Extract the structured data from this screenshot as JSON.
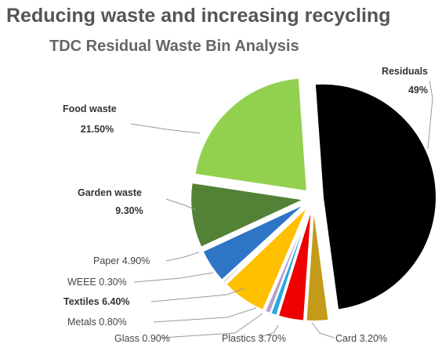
{
  "title": "Reducing waste and increasing recycling",
  "subtitle": "TDC Residual Waste Bin Analysis",
  "chart_data": {
    "type": "pie",
    "title": "Reducing waste and increasing recycling",
    "subtitle": "TDC Residual Waste Bin Analysis",
    "legend": "none",
    "slices": [
      {
        "name": "Residuals",
        "value": 49,
        "label": "Residuals",
        "value_label": "49%",
        "color": "#000000",
        "exploded": true,
        "bold": true
      },
      {
        "name": "Card",
        "value": 3.2,
        "label": "Card 3.20%",
        "color": "#c49a1a",
        "exploded": true,
        "bold": false
      },
      {
        "name": "Plastics",
        "value": 3.7,
        "label": "Plastics 3.70%",
        "color": "#ee0000",
        "exploded": true,
        "bold": false
      },
      {
        "name": "Glass",
        "value": 0.9,
        "label": "Glass 0.90%",
        "color": "#27a9e1",
        "exploded": true,
        "bold": false
      },
      {
        "name": "Metals",
        "value": 0.8,
        "label": "Metals 0.80%",
        "color": "#b8a0cc",
        "exploded": true,
        "bold": false
      },
      {
        "name": "Textiles",
        "value": 6.4,
        "label": "Textiles 6.40%",
        "color": "#ffc000",
        "exploded": true,
        "bold": true
      },
      {
        "name": "WEEE",
        "value": 0.3,
        "label": "WEEE 0.30%",
        "color": "#a9a9a9",
        "exploded": true,
        "bold": false
      },
      {
        "name": "Paper",
        "value": 4.9,
        "label": "Paper 4.90%",
        "color": "#2e75c6",
        "exploded": true,
        "bold": false
      },
      {
        "name": "Garden waste",
        "value": 9.3,
        "label": "Garden waste",
        "value_label": "9.30%",
        "color": "#538135",
        "exploded": true,
        "bold": true
      },
      {
        "name": "Food waste",
        "value": 21.5,
        "label": "Food waste",
        "value_label": "21.50%",
        "color": "#92d050",
        "exploded": true,
        "bold": true
      }
    ]
  }
}
